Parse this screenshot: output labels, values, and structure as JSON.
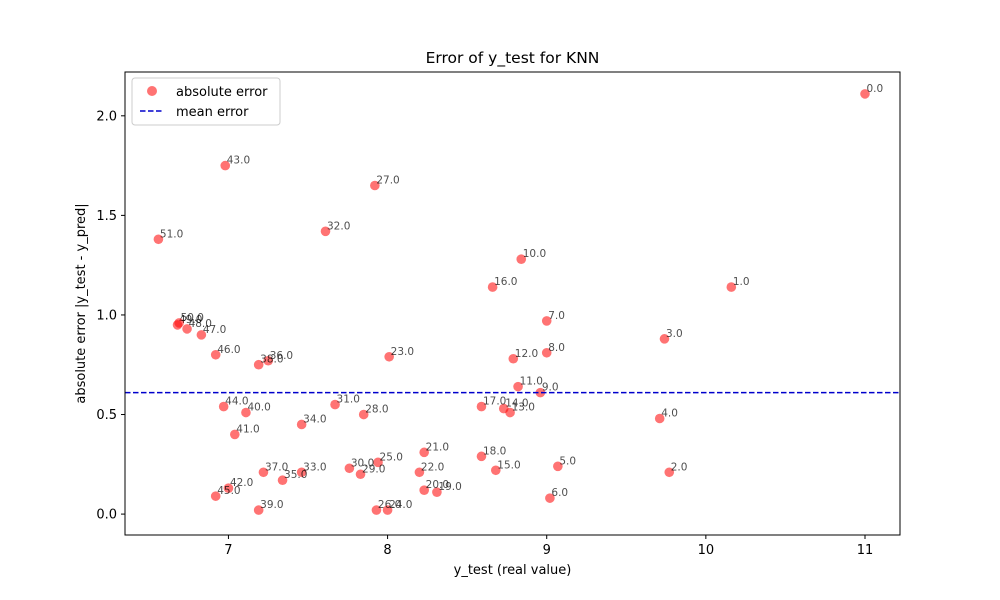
{
  "chart_data": {
    "type": "scatter",
    "title": "Error of y_test for KNN",
    "xlabel": "y_test (real value)",
    "ylabel": "absolute error |y_test - y_pred|",
    "xlim": [
      6.35,
      11.22
    ],
    "ylim": [
      -0.105,
      2.22
    ],
    "xticks": [
      {
        "value": 7,
        "label": "7"
      },
      {
        "value": 8,
        "label": "8"
      },
      {
        "value": 9,
        "label": "9"
      },
      {
        "value": 10,
        "label": "10"
      },
      {
        "value": 11,
        "label": "11"
      }
    ],
    "yticks": [
      {
        "value": 0.0,
        "label": "0.0"
      },
      {
        "value": 0.5,
        "label": "0.5"
      },
      {
        "value": 1.0,
        "label": "1.0"
      },
      {
        "value": 1.5,
        "label": "1.5"
      },
      {
        "value": 2.0,
        "label": "2.0"
      }
    ],
    "grid": false,
    "legend_position": "top-left",
    "series": [
      {
        "name": "absolute error",
        "color": "#ff0000",
        "points": [
          {
            "x": 11.0,
            "y": 2.11,
            "label": "0.0"
          },
          {
            "x": 10.16,
            "y": 1.14,
            "label": "1.0"
          },
          {
            "x": 9.77,
            "y": 0.21,
            "label": "2.0"
          },
          {
            "x": 9.74,
            "y": 0.88,
            "label": "3.0"
          },
          {
            "x": 9.71,
            "y": 0.48,
            "label": "4.0"
          },
          {
            "x": 9.07,
            "y": 0.24,
            "label": "5.0"
          },
          {
            "x": 9.02,
            "y": 0.08,
            "label": "6.0"
          },
          {
            "x": 9.0,
            "y": 0.97,
            "label": "7.0"
          },
          {
            "x": 9.0,
            "y": 0.81,
            "label": "8.0"
          },
          {
            "x": 8.96,
            "y": 0.61,
            "label": "9.0"
          },
          {
            "x": 8.84,
            "y": 1.28,
            "label": "10.0"
          },
          {
            "x": 8.82,
            "y": 0.64,
            "label": "11.0"
          },
          {
            "x": 8.79,
            "y": 0.78,
            "label": "12.0"
          },
          {
            "x": 8.77,
            "y": 0.51,
            "label": "13.0"
          },
          {
            "x": 8.73,
            "y": 0.53,
            "label": "14.0"
          },
          {
            "x": 8.68,
            "y": 0.22,
            "label": "15.0"
          },
          {
            "x": 8.66,
            "y": 1.14,
            "label": "16.0"
          },
          {
            "x": 8.59,
            "y": 0.54,
            "label": "17.0"
          },
          {
            "x": 8.59,
            "y": 0.29,
            "label": "18.0"
          },
          {
            "x": 8.31,
            "y": 0.11,
            "label": "19.0"
          },
          {
            "x": 8.23,
            "y": 0.12,
            "label": "20.0"
          },
          {
            "x": 8.23,
            "y": 0.31,
            "label": "21.0"
          },
          {
            "x": 8.2,
            "y": 0.21,
            "label": "22.0"
          },
          {
            "x": 8.01,
            "y": 0.79,
            "label": "23.0"
          },
          {
            "x": 8.0,
            "y": 0.02,
            "label": "24.0"
          },
          {
            "x": 7.94,
            "y": 0.26,
            "label": "25.0"
          },
          {
            "x": 7.93,
            "y": 0.02,
            "label": "26.0"
          },
          {
            "x": 7.92,
            "y": 1.65,
            "label": "27.0"
          },
          {
            "x": 7.85,
            "y": 0.5,
            "label": "28.0"
          },
          {
            "x": 7.83,
            "y": 0.2,
            "label": "29.0"
          },
          {
            "x": 7.76,
            "y": 0.23,
            "label": "30.0"
          },
          {
            "x": 7.67,
            "y": 0.55,
            "label": "31.0"
          },
          {
            "x": 7.61,
            "y": 1.42,
            "label": "32.0"
          },
          {
            "x": 7.46,
            "y": 0.21,
            "label": "33.0"
          },
          {
            "x": 7.46,
            "y": 0.45,
            "label": "34.0"
          },
          {
            "x": 7.34,
            "y": 0.17,
            "label": "35.0"
          },
          {
            "x": 7.25,
            "y": 0.77,
            "label": "36.0"
          },
          {
            "x": 7.22,
            "y": 0.21,
            "label": "37.0"
          },
          {
            "x": 7.19,
            "y": 0.75,
            "label": "38.0"
          },
          {
            "x": 7.19,
            "y": 0.02,
            "label": "39.0"
          },
          {
            "x": 7.11,
            "y": 0.51,
            "label": "40.0"
          },
          {
            "x": 7.04,
            "y": 0.4,
            "label": "41.0"
          },
          {
            "x": 7.0,
            "y": 0.13,
            "label": "42.0"
          },
          {
            "x": 6.98,
            "y": 1.75,
            "label": "43.0"
          },
          {
            "x": 6.97,
            "y": 0.54,
            "label": "44.0"
          },
          {
            "x": 6.92,
            "y": 0.09,
            "label": "45.0"
          },
          {
            "x": 6.92,
            "y": 0.8,
            "label": "46.0"
          },
          {
            "x": 6.83,
            "y": 0.9,
            "label": "47.0"
          },
          {
            "x": 6.74,
            "y": 0.93,
            "label": "48.0"
          },
          {
            "x": 6.68,
            "y": 0.95,
            "label": "49.0"
          },
          {
            "x": 6.69,
            "y": 0.96,
            "label": "50.0"
          },
          {
            "x": 6.56,
            "y": 1.38,
            "label": "51.0"
          }
        ]
      }
    ],
    "reference_lines": [
      {
        "name": "mean error",
        "axis": "y",
        "value": 0.61,
        "color": "#0000cc",
        "style": "dashed"
      }
    ]
  }
}
